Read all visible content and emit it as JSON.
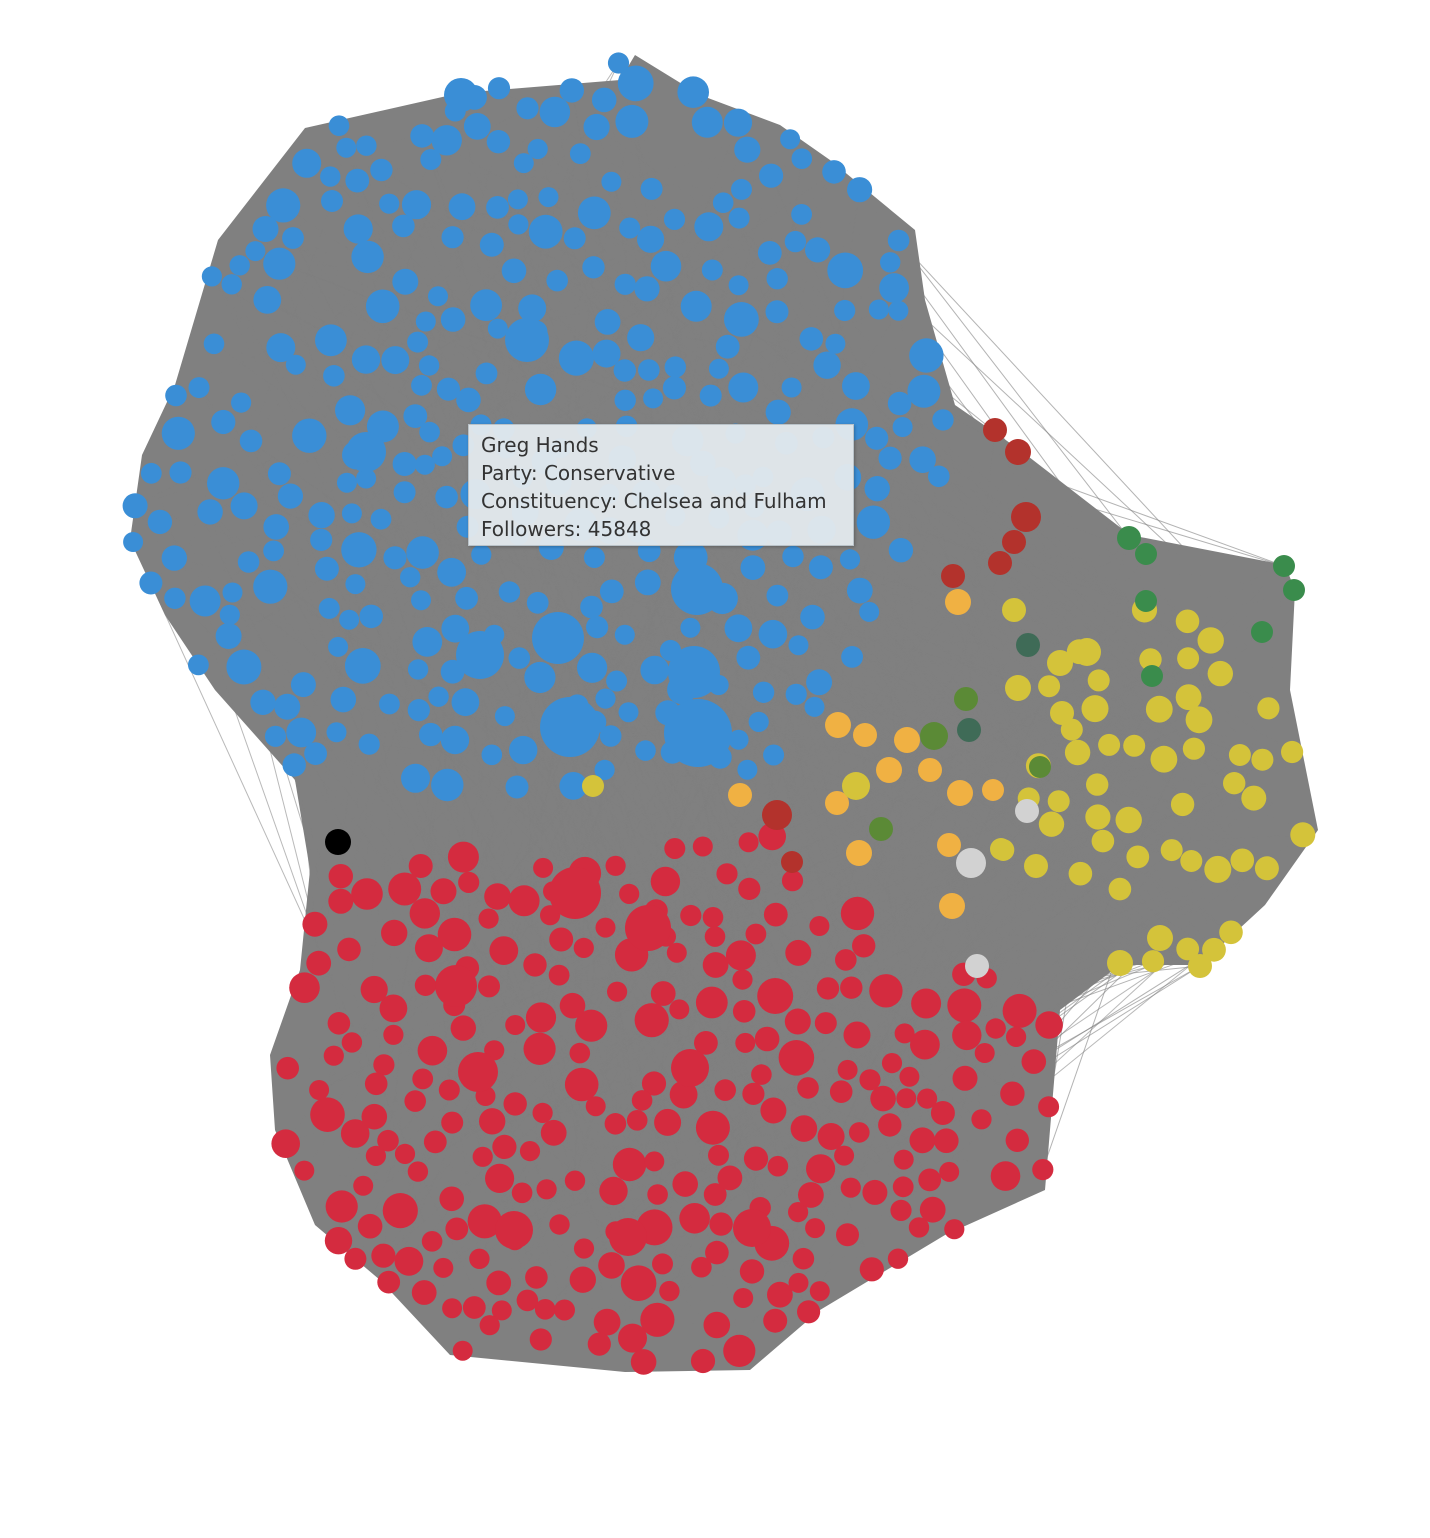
{
  "tooltip": {
    "name": "Greg Hands",
    "party": "Party: Conservative",
    "constituency": "Constituency: Chelsea and Fulham",
    "followers": "Followers: 45848"
  },
  "colors": {
    "edge": "#808080",
    "background": "#ffffff",
    "conservative": "#3a8ed6",
    "labour": "#d42b3f",
    "snp": "#d4c33a",
    "libdem": "#f0b143",
    "labour_coop": "#b3322c",
    "green": "#3a8c4c",
    "plaid": "#3f6b57",
    "alliance": "#5b8a36",
    "other": "#d2d2d2",
    "independent": "#000000"
  },
  "legend_groups": [
    "conservative",
    "labour",
    "snp",
    "libdem",
    "labour_coop",
    "green",
    "plaid",
    "alliance",
    "other",
    "independent"
  ]
}
